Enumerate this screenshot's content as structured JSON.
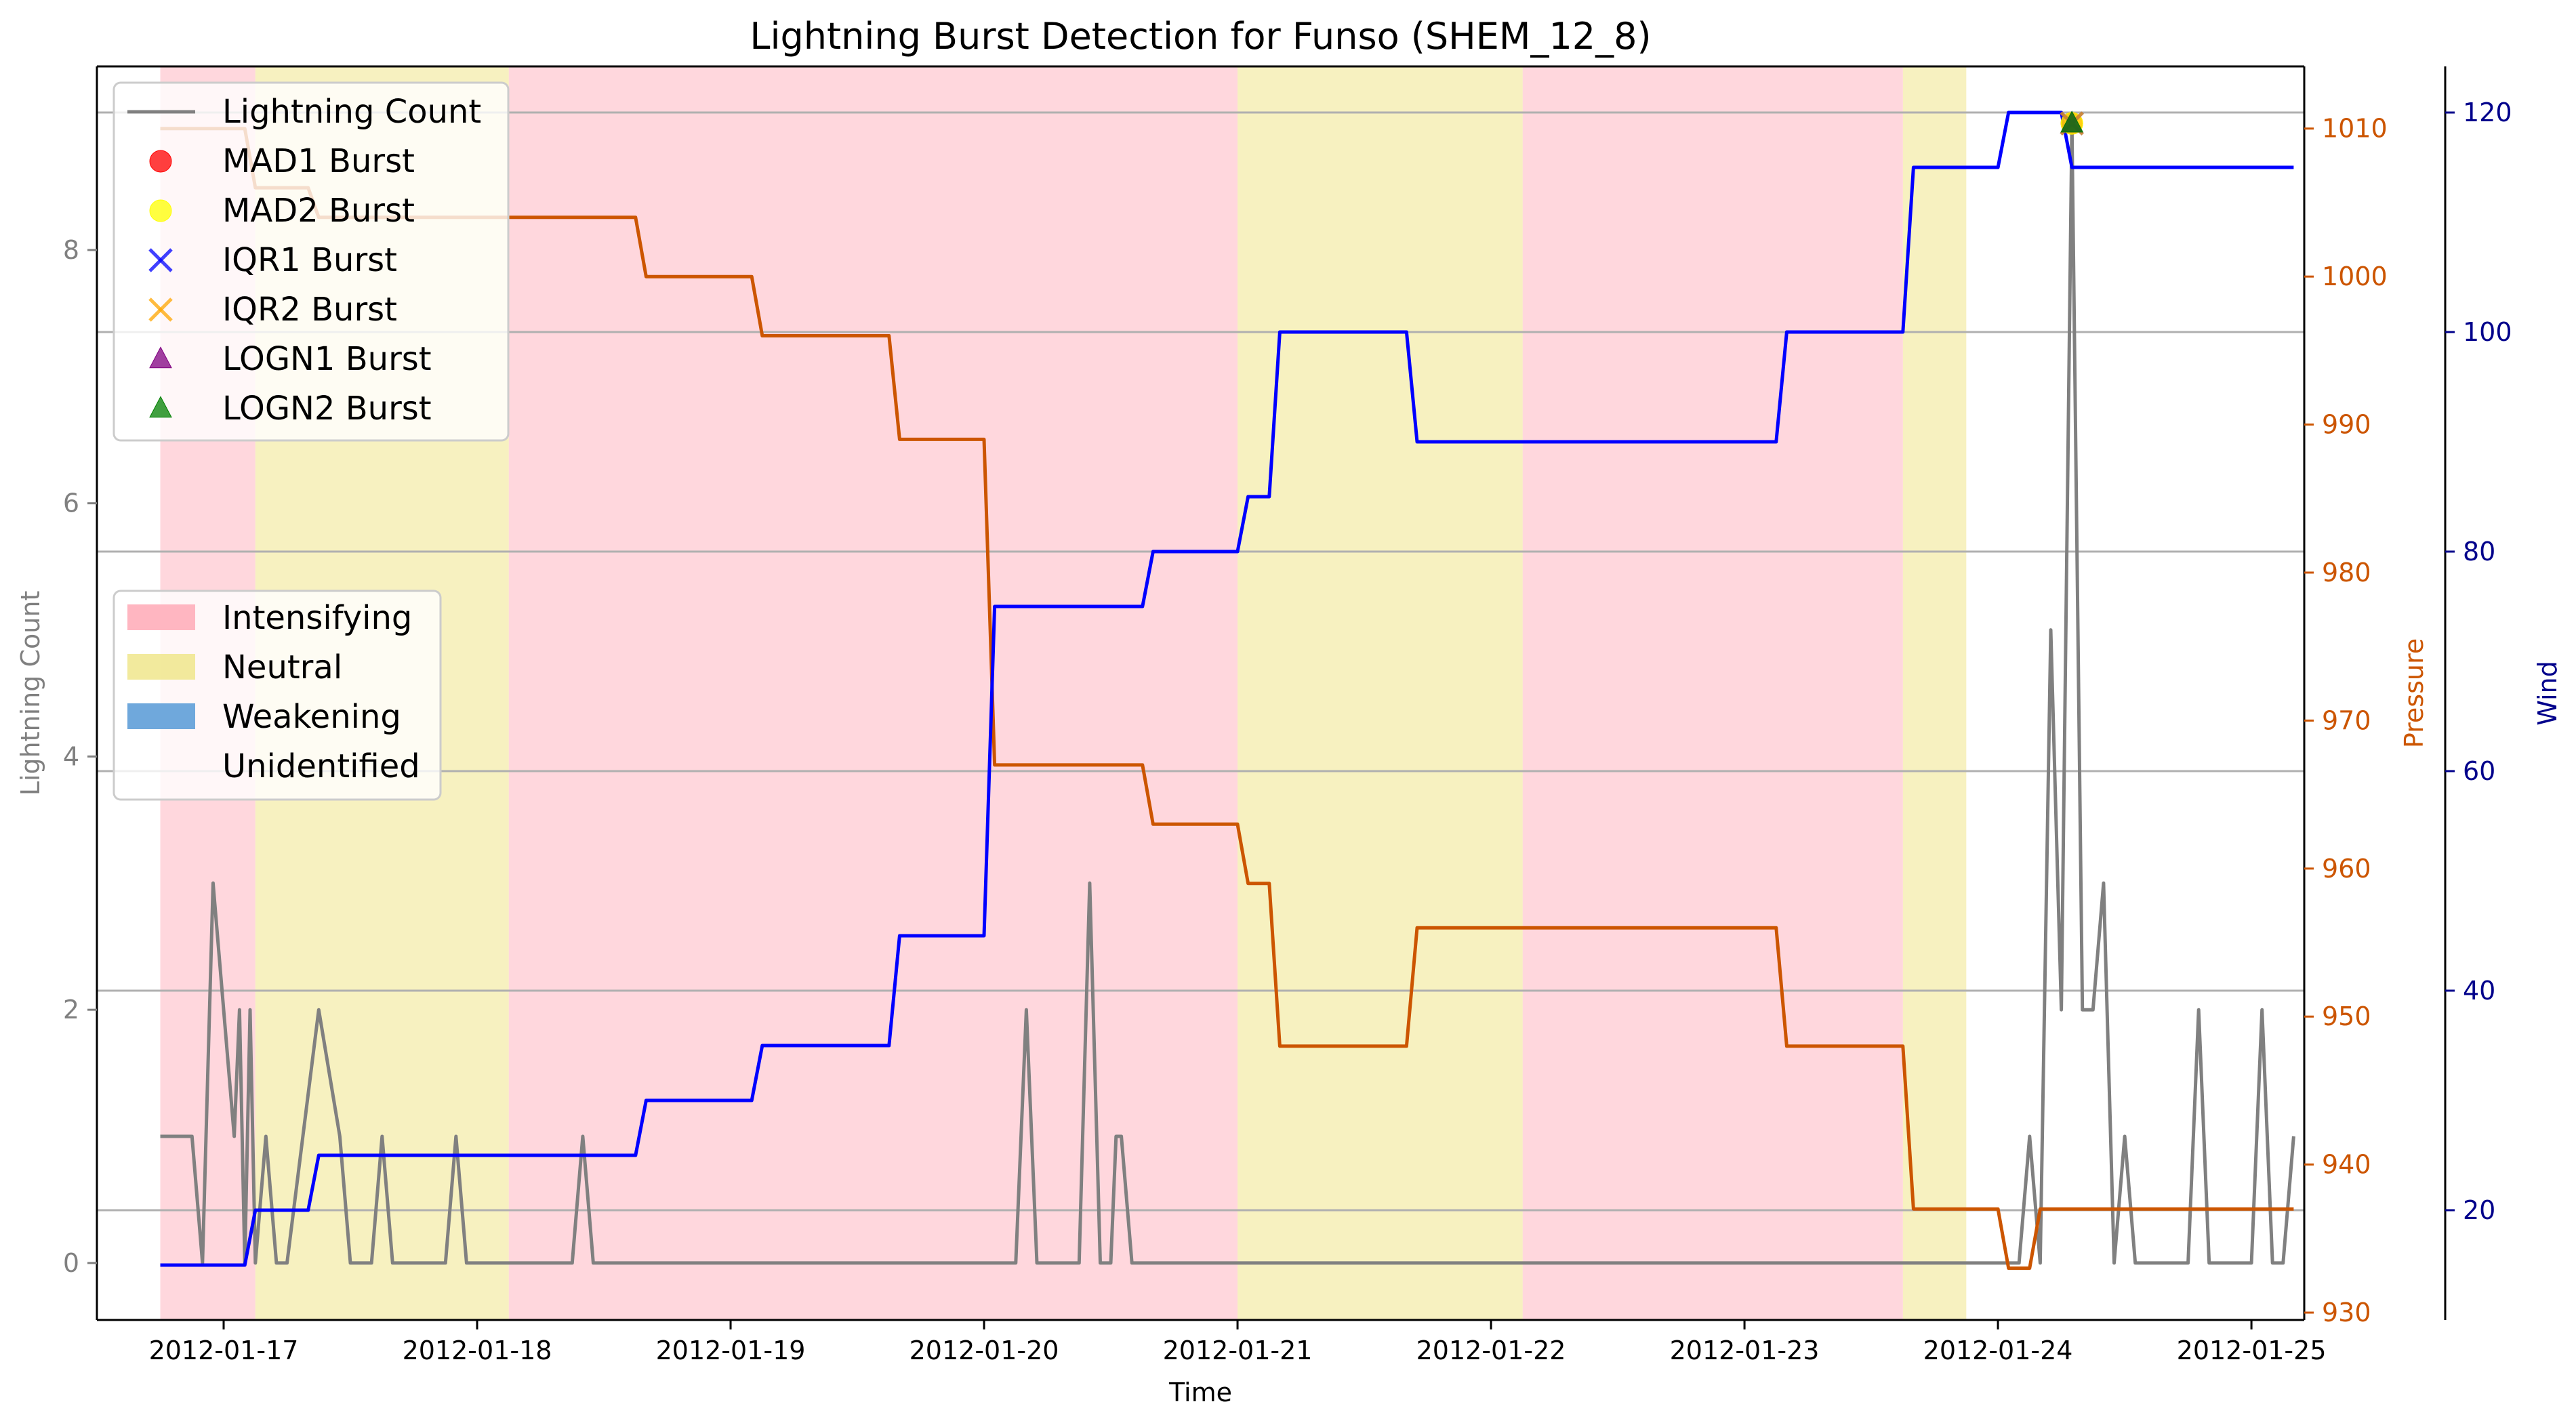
{
  "chart_data": {
    "type": "line",
    "title": "Lightning Burst Detection for Funso (SHEM_12_8)",
    "xlabel": "Time",
    "ylabel_left": "Lightning Count",
    "ylabel_pressure": "Pressure",
    "ylabel_wind": "Wind",
    "x_range": [
      "2012-01-16 12:00",
      "2012-01-25 05:00"
    ],
    "ylim_count": [
      -0.45,
      9.45
    ],
    "ylim_pressure": [
      929.5,
      1014.2
    ],
    "ylim_wind": [
      10.0,
      124.2
    ],
    "x_ticks": [
      "2012-01-17",
      "2012-01-18",
      "2012-01-19",
      "2012-01-20",
      "2012-01-21",
      "2012-01-22",
      "2012-01-23",
      "2012-01-24",
      "2012-01-25"
    ],
    "count_ticks": [
      0,
      2,
      4,
      6,
      8
    ],
    "pressure_ticks": [
      930,
      940,
      950,
      960,
      970,
      980,
      990,
      1000,
      1010
    ],
    "wind_ticks": [
      20,
      40,
      60,
      80,
      100,
      120
    ],
    "colors": {
      "count": "#808080",
      "pressure": "#CC5500",
      "wind": "#0000FF",
      "intensifying": "#FFB6C1",
      "neutral": "#F0E68C",
      "weakening": "#6FA8DC"
    },
    "phases": [
      {
        "start": "2012-01-16 18:00",
        "end": "2012-01-17 03:00",
        "phase": "Intensifying"
      },
      {
        "start": "2012-01-17 03:00",
        "end": "2012-01-18 03:00",
        "phase": "Neutral"
      },
      {
        "start": "2012-01-18 03:00",
        "end": "2012-01-21 00:00",
        "phase": "Intensifying"
      },
      {
        "start": "2012-01-21 00:00",
        "end": "2012-01-22 03:00",
        "phase": "Neutral"
      },
      {
        "start": "2012-01-22 03:00",
        "end": "2012-01-23 15:00",
        "phase": "Intensifying"
      },
      {
        "start": "2012-01-23 15:00",
        "end": "2012-01-23 21:00",
        "phase": "Neutral"
      }
    ],
    "series": [
      {
        "name": "Lightning Count",
        "points": [
          [
            "2012-01-16 18:00",
            1
          ],
          [
            "2012-01-16 21:00",
            1
          ],
          [
            "2012-01-16 22:00",
            0
          ],
          [
            "2012-01-16 23:00",
            3
          ],
          [
            "2012-01-17 00:00",
            2
          ],
          [
            "2012-01-17 01:00",
            1
          ],
          [
            "2012-01-17 01:30",
            2
          ],
          [
            "2012-01-17 02:00",
            0
          ],
          [
            "2012-01-17 02:30",
            2
          ],
          [
            "2012-01-17 03:00",
            0
          ],
          [
            "2012-01-17 04:00",
            1
          ],
          [
            "2012-01-17 05:00",
            0
          ],
          [
            "2012-01-17 06:00",
            0
          ],
          [
            "2012-01-17 09:00",
            2
          ],
          [
            "2012-01-17 11:00",
            1
          ],
          [
            "2012-01-17 12:00",
            0
          ],
          [
            "2012-01-17 14:00",
            0
          ],
          [
            "2012-01-17 15:00",
            1
          ],
          [
            "2012-01-17 16:00",
            0
          ],
          [
            "2012-01-17 18:00",
            0
          ],
          [
            "2012-01-17 21:00",
            0
          ],
          [
            "2012-01-17 22:00",
            1
          ],
          [
            "2012-01-17 23:00",
            0
          ],
          [
            "2012-01-18 09:00",
            0
          ],
          [
            "2012-01-18 10:00",
            1
          ],
          [
            "2012-01-18 11:00",
            0
          ],
          [
            "2012-01-20 03:00",
            0
          ],
          [
            "2012-01-20 04:00",
            2
          ],
          [
            "2012-01-20 05:00",
            0
          ],
          [
            "2012-01-20 09:00",
            0
          ],
          [
            "2012-01-20 10:00",
            3
          ],
          [
            "2012-01-20 11:00",
            0
          ],
          [
            "2012-01-20 12:00",
            0
          ],
          [
            "2012-01-20 12:30",
            1
          ],
          [
            "2012-01-20 13:00",
            1
          ],
          [
            "2012-01-20 14:00",
            0
          ],
          [
            "2012-01-24 02:00",
            0
          ],
          [
            "2012-01-24 03:00",
            1
          ],
          [
            "2012-01-24 04:00",
            0
          ],
          [
            "2012-01-24 05:00",
            5
          ],
          [
            "2012-01-24 06:00",
            2
          ],
          [
            "2012-01-24 07:00",
            9
          ],
          [
            "2012-01-24 08:00",
            2
          ],
          [
            "2012-01-24 09:00",
            2
          ],
          [
            "2012-01-24 10:00",
            3
          ],
          [
            "2012-01-24 11:00",
            0
          ],
          [
            "2012-01-24 12:00",
            1
          ],
          [
            "2012-01-24 13:00",
            0
          ],
          [
            "2012-01-24 18:00",
            0
          ],
          [
            "2012-01-24 19:00",
            2
          ],
          [
            "2012-01-24 20:00",
            0
          ],
          [
            "2012-01-25 00:00",
            0
          ],
          [
            "2012-01-25 01:00",
            2
          ],
          [
            "2012-01-25 02:00",
            0
          ],
          [
            "2012-01-25 03:00",
            0
          ],
          [
            "2012-01-25 04:00",
            1
          ]
        ]
      },
      {
        "name": "Pressure",
        "points": [
          [
            "2012-01-16 18:00",
            1010
          ],
          [
            "2012-01-17 02:00",
            1010
          ],
          [
            "2012-01-17 03:00",
            1006
          ],
          [
            "2012-01-17 08:00",
            1006
          ],
          [
            "2012-01-17 09:00",
            1004
          ],
          [
            "2012-01-18 15:00",
            1004
          ],
          [
            "2012-01-18 16:00",
            1000
          ],
          [
            "2012-01-19 02:00",
            1000
          ],
          [
            "2012-01-19 03:00",
            996
          ],
          [
            "2012-01-19 15:00",
            996
          ],
          [
            "2012-01-19 16:00",
            989
          ],
          [
            "2012-01-20 00:00",
            989
          ],
          [
            "2012-01-20 01:00",
            967
          ],
          [
            "2012-01-20 15:00",
            967
          ],
          [
            "2012-01-20 16:00",
            963
          ],
          [
            "2012-01-21 00:00",
            963
          ],
          [
            "2012-01-21 01:00",
            959
          ],
          [
            "2012-01-21 03:00",
            959
          ],
          [
            "2012-01-21 04:00",
            948
          ],
          [
            "2012-01-21 16:00",
            948
          ],
          [
            "2012-01-21 17:00",
            956
          ],
          [
            "2012-01-23 03:00",
            956
          ],
          [
            "2012-01-23 04:00",
            948
          ],
          [
            "2012-01-23 15:00",
            948
          ],
          [
            "2012-01-23 16:00",
            937
          ],
          [
            "2012-01-24 00:00",
            937
          ],
          [
            "2012-01-24 01:00",
            933
          ],
          [
            "2012-01-24 03:00",
            933
          ],
          [
            "2012-01-24 04:00",
            937
          ],
          [
            "2012-01-25 04:00",
            937
          ]
        ]
      },
      {
        "name": "Wind",
        "points": [
          [
            "2012-01-16 18:00",
            15
          ],
          [
            "2012-01-17 02:00",
            15
          ],
          [
            "2012-01-17 03:00",
            20
          ],
          [
            "2012-01-17 08:00",
            20
          ],
          [
            "2012-01-17 09:00",
            25
          ],
          [
            "2012-01-18 15:00",
            25
          ],
          [
            "2012-01-18 16:00",
            30
          ],
          [
            "2012-01-19 02:00",
            30
          ],
          [
            "2012-01-19 03:00",
            35
          ],
          [
            "2012-01-19 15:00",
            35
          ],
          [
            "2012-01-19 16:00",
            45
          ],
          [
            "2012-01-20 00:00",
            45
          ],
          [
            "2012-01-20 01:00",
            75
          ],
          [
            "2012-01-20 15:00",
            75
          ],
          [
            "2012-01-20 16:00",
            80
          ],
          [
            "2012-01-21 00:00",
            80
          ],
          [
            "2012-01-21 01:00",
            85
          ],
          [
            "2012-01-21 03:00",
            85
          ],
          [
            "2012-01-21 04:00",
            100
          ],
          [
            "2012-01-21 16:00",
            100
          ],
          [
            "2012-01-21 17:00",
            90
          ],
          [
            "2012-01-23 03:00",
            90
          ],
          [
            "2012-01-23 04:00",
            100
          ],
          [
            "2012-01-23 15:00",
            100
          ],
          [
            "2012-01-23 16:00",
            115
          ],
          [
            "2012-01-24 00:00",
            115
          ],
          [
            "2012-01-24 01:00",
            120
          ],
          [
            "2012-01-24 06:00",
            120
          ],
          [
            "2012-01-24 07:00",
            115
          ],
          [
            "2012-01-25 04:00",
            115
          ]
        ]
      }
    ],
    "bursts": [
      {
        "series": "MAD1 Burst",
        "x": "2012-01-24 07:00",
        "y": 9,
        "marker": "circle",
        "color": "#FF0000"
      },
      {
        "series": "MAD2 Burst",
        "x": "2012-01-24 07:00",
        "y": 9,
        "marker": "circle",
        "color": "#FFFF00"
      },
      {
        "series": "IQR1 Burst",
        "x": "2012-01-24 07:00",
        "y": 9,
        "marker": "x",
        "color": "#0000FF"
      },
      {
        "series": "IQR2 Burst",
        "x": "2012-01-24 07:00",
        "y": 9,
        "marker": "x",
        "color": "#FFA500"
      },
      {
        "series": "LOGN1 Burst",
        "x": "2012-01-24 07:00",
        "y": 9,
        "marker": "triangle",
        "color": "#800080"
      },
      {
        "series": "LOGN2 Burst",
        "x": "2012-01-24 07:00",
        "y": 9,
        "marker": "triangle",
        "color": "#008000"
      }
    ],
    "legend_series": [
      {
        "label": "Lightning Count",
        "kind": "line",
        "color": "#808080"
      },
      {
        "label": "MAD1 Burst",
        "kind": "circle",
        "color": "#FF0000"
      },
      {
        "label": "MAD2 Burst",
        "kind": "circle",
        "color": "#FFFF00"
      },
      {
        "label": "IQR1 Burst",
        "kind": "x",
        "color": "#0000FF"
      },
      {
        "label": "IQR2 Burst",
        "kind": "x",
        "color": "#FFA500"
      },
      {
        "label": "LOGN1 Burst",
        "kind": "triangle",
        "color": "#800080"
      },
      {
        "label": "LOGN2 Burst",
        "kind": "triangle",
        "color": "#008000"
      }
    ],
    "legend_phases": [
      {
        "label": "Intensifying",
        "color": "#FFB6C1"
      },
      {
        "label": "Neutral",
        "color": "#F0E68C"
      },
      {
        "label": "Weakening",
        "color": "#6FA8DC"
      },
      {
        "label": "Unidentified",
        "color": "none"
      }
    ],
    "legend_placement": [
      "upper-left",
      "center-left"
    ],
    "grid": "horizontal grid lines aligned to the wind axis"
  }
}
